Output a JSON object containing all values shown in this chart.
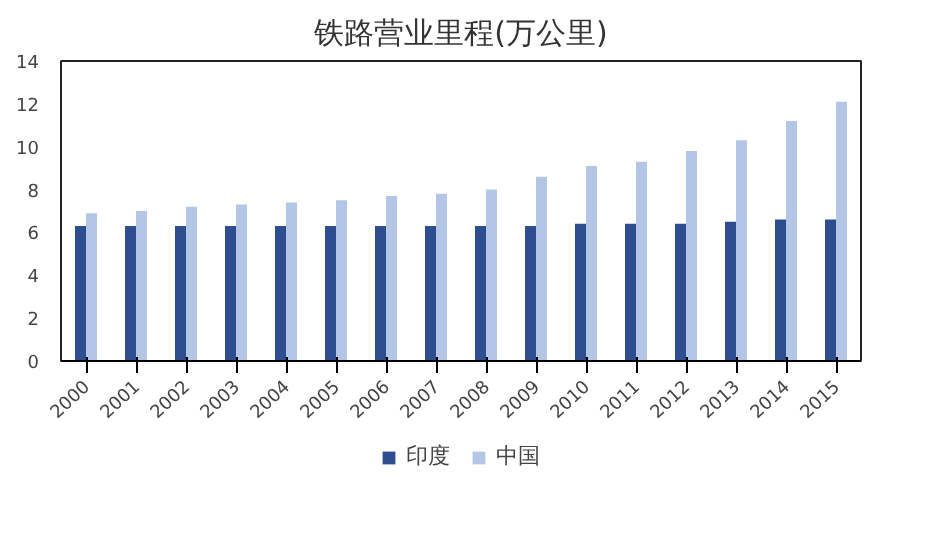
{
  "chart_data": {
    "type": "bar",
    "title": "铁路营业里程(万公里)",
    "categories": [
      "2000",
      "2001",
      "2002",
      "2003",
      "2004",
      "2005",
      "2006",
      "2007",
      "2008",
      "2009",
      "2010",
      "2011",
      "2012",
      "2013",
      "2014",
      "2015"
    ],
    "series": [
      {
        "name": "印度",
        "color": "#2e4d8f",
        "values": [
          6.3,
          6.3,
          6.3,
          6.3,
          6.3,
          6.3,
          6.3,
          6.3,
          6.3,
          6.3,
          6.4,
          6.4,
          6.4,
          6.5,
          6.6,
          6.6
        ]
      },
      {
        "name": "中国",
        "color": "#b4c6e6",
        "values": [
          6.9,
          7.0,
          7.2,
          7.3,
          7.4,
          7.5,
          7.7,
          7.8,
          8.0,
          8.6,
          9.1,
          9.3,
          9.8,
          10.3,
          11.2,
          12.1
        ]
      }
    ],
    "ylim": [
      0,
      14
    ],
    "yticks": [
      0,
      2,
      4,
      6,
      8,
      10,
      12,
      14
    ],
    "grid": false,
    "legend": "bottom"
  }
}
